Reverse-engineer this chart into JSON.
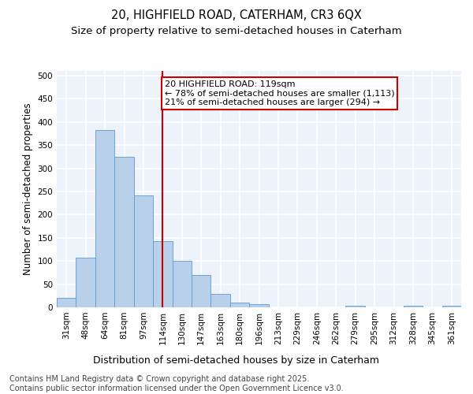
{
  "title_line1": "20, HIGHFIELD ROAD, CATERHAM, CR3 6QX",
  "title_line2": "Size of property relative to semi-detached houses in Caterham",
  "xlabel": "Distribution of semi-detached houses by size in Caterham",
  "ylabel": "Number of semi-detached properties",
  "categories": [
    "31sqm",
    "48sqm",
    "64sqm",
    "81sqm",
    "97sqm",
    "114sqm",
    "130sqm",
    "147sqm",
    "163sqm",
    "180sqm",
    "196sqm",
    "213sqm",
    "229sqm",
    "246sqm",
    "262sqm",
    "279sqm",
    "295sqm",
    "312sqm",
    "328sqm",
    "345sqm",
    "361sqm"
  ],
  "values": [
    20,
    107,
    383,
    325,
    242,
    142,
    101,
    69,
    29,
    10,
    6,
    0,
    0,
    0,
    0,
    3,
    0,
    0,
    4,
    0,
    4
  ],
  "bar_color": "#b8d0ea",
  "bar_edge_color": "#5b9bd5",
  "vline_x_index": 5,
  "vline_color": "#cc0000",
  "annotation_box_text": "20 HIGHFIELD ROAD: 119sqm\n← 78% of semi-detached houses are smaller (1,113)\n21% of semi-detached houses are larger (294) →",
  "annotation_box_color": "#cc0000",
  "ylim": [
    0,
    510
  ],
  "yticks": [
    0,
    50,
    100,
    150,
    200,
    250,
    300,
    350,
    400,
    450,
    500
  ],
  "background_color": "#eef2fa",
  "grid_color": "#ffffff",
  "footer_text": "Contains HM Land Registry data © Crown copyright and database right 2025.\nContains public sector information licensed under the Open Government Licence v3.0.",
  "title_fontsize": 10.5,
  "subtitle_fontsize": 9.5,
  "annotation_fontsize": 8,
  "footer_fontsize": 7,
  "xlabel_fontsize": 9,
  "ylabel_fontsize": 8.5,
  "tick_fontsize": 7.5
}
